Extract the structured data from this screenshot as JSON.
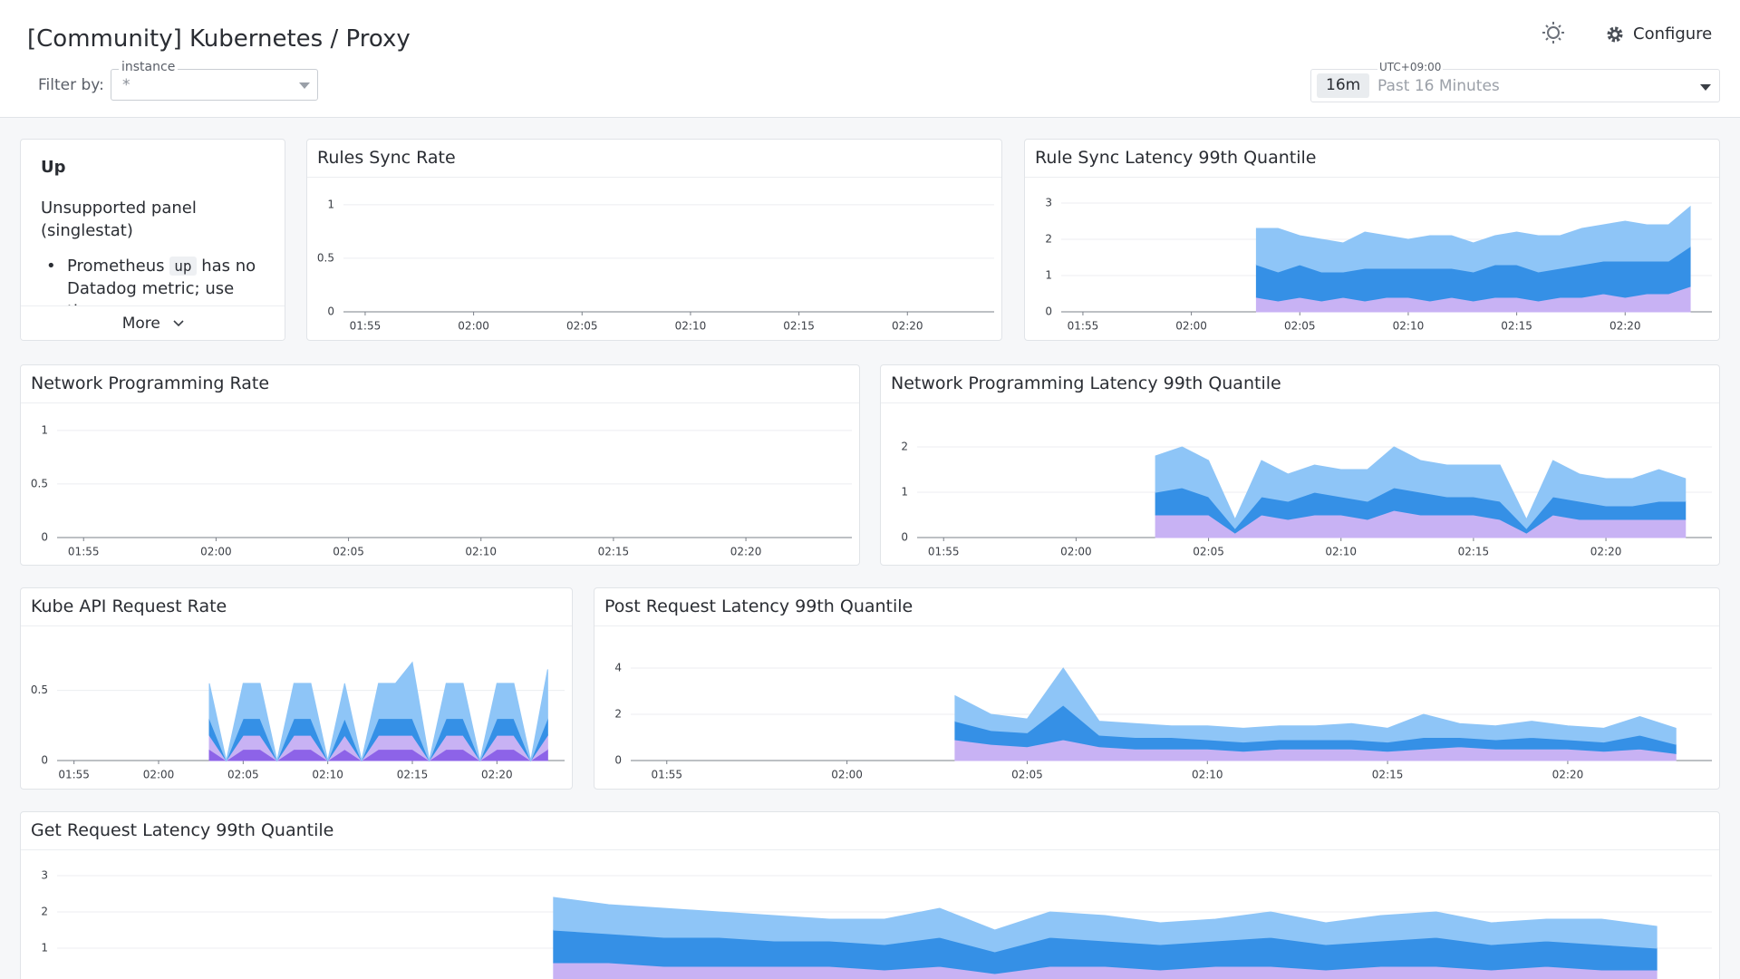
{
  "header": {
    "title": "[Community] Kubernetes / Proxy",
    "filter_label": "Filter by:",
    "filter_name": "instance",
    "filter_value": "*",
    "timezone": "UTC+09:00",
    "range_badge": "16m",
    "range_text": "Past 16 Minutes",
    "configure": "Configure"
  },
  "note_panel": {
    "title": "Up",
    "text": "Unsupported panel (singlestat)",
    "bullet_start": "Prometheus",
    "bullet_code": "up",
    "bullet_end": "has no Datadog metric; use the",
    "more": "More"
  },
  "chart_data": [
    {
      "type": "line",
      "title": "Rules Sync Rate",
      "xlim": [
        "01:54",
        "02:24"
      ],
      "xticks": [
        "01:55",
        "02:00",
        "02:05",
        "02:10",
        "02:15",
        "02:20"
      ],
      "ylim": [
        0,
        1.1
      ],
      "yticks": [
        0,
        0.5,
        1
      ],
      "grid": true,
      "series": []
    },
    {
      "type": "area",
      "title": "Rule Sync Latency 99th Quantile",
      "xlim": [
        "01:54",
        "02:24"
      ],
      "xticks": [
        "01:55",
        "02:00",
        "02:05",
        "02:10",
        "02:15",
        "02:20"
      ],
      "ylim": [
        0,
        3.25
      ],
      "yticks": [
        0,
        1,
        2,
        3
      ],
      "grid": true,
      "stacked": true,
      "x": [
        "02:03",
        "02:04",
        "02:05",
        "02:06",
        "02:07",
        "02:08",
        "02:09",
        "02:10",
        "02:11",
        "02:12",
        "02:13",
        "02:14",
        "02:15",
        "02:16",
        "02:17",
        "02:18",
        "02:19",
        "02:20",
        "02:21",
        "02:22",
        "02:23"
      ],
      "series": [
        {
          "color": "#c8b2f4",
          "values": [
            0.4,
            0.3,
            0.4,
            0.3,
            0.4,
            0.3,
            0.4,
            0.4,
            0.3,
            0.4,
            0.3,
            0.4,
            0.4,
            0.3,
            0.4,
            0.4,
            0.5,
            0.4,
            0.5,
            0.5,
            0.7
          ]
        },
        {
          "color": "#3590e6",
          "values": [
            0.9,
            0.8,
            0.9,
            0.8,
            0.7,
            0.9,
            0.8,
            0.8,
            0.9,
            0.8,
            0.8,
            0.9,
            0.9,
            0.8,
            0.8,
            0.9,
            0.9,
            1.0,
            0.9,
            0.9,
            1.1
          ]
        },
        {
          "color": "#8ec5f7",
          "values": [
            1.0,
            1.2,
            0.8,
            0.9,
            0.8,
            1.0,
            0.9,
            0.8,
            0.9,
            0.9,
            0.8,
            0.8,
            0.9,
            1.0,
            0.9,
            1.0,
            1.0,
            1.1,
            1.0,
            1.0,
            1.1
          ]
        }
      ]
    },
    {
      "type": "line",
      "title": "Network Programming Rate",
      "xlim": [
        "01:54",
        "02:24"
      ],
      "xticks": [
        "01:55",
        "02:00",
        "02:05",
        "02:10",
        "02:15",
        "02:20"
      ],
      "ylim": [
        0,
        1.1
      ],
      "yticks": [
        0,
        0.5,
        1
      ],
      "grid": true,
      "series": []
    },
    {
      "type": "area",
      "title": "Network Programming Latency 99th Quantile",
      "xlim": [
        "01:54",
        "02:24"
      ],
      "xticks": [
        "01:55",
        "02:00",
        "02:05",
        "02:10",
        "02:15",
        "02:20"
      ],
      "ylim": [
        0,
        2.6
      ],
      "yticks": [
        0,
        1,
        2
      ],
      "grid": true,
      "stacked": true,
      "x": [
        "02:03",
        "02:04",
        "02:05",
        "02:06",
        "02:07",
        "02:08",
        "02:09",
        "02:10",
        "02:11",
        "02:12",
        "02:13",
        "02:14",
        "02:15",
        "02:16",
        "02:17",
        "02:18",
        "02:19",
        "02:20",
        "02:21",
        "02:22",
        "02:23"
      ],
      "series": [
        {
          "color": "#c8b2f4",
          "values": [
            0.5,
            0.5,
            0.5,
            0.1,
            0.5,
            0.4,
            0.5,
            0.5,
            0.4,
            0.6,
            0.5,
            0.5,
            0.5,
            0.4,
            0.1,
            0.5,
            0.4,
            0.4,
            0.4,
            0.4,
            0.4
          ]
        },
        {
          "color": "#3590e6",
          "values": [
            0.5,
            0.6,
            0.4,
            0.1,
            0.4,
            0.4,
            0.5,
            0.4,
            0.4,
            0.5,
            0.5,
            0.4,
            0.4,
            0.4,
            0.1,
            0.4,
            0.4,
            0.3,
            0.3,
            0.4,
            0.4
          ]
        },
        {
          "color": "#8ec5f7",
          "values": [
            0.8,
            0.9,
            0.8,
            0.2,
            0.8,
            0.6,
            0.6,
            0.6,
            0.7,
            0.9,
            0.7,
            0.7,
            0.7,
            0.8,
            0.2,
            0.8,
            0.6,
            0.6,
            0.6,
            0.7,
            0.5
          ]
        }
      ]
    },
    {
      "type": "area",
      "title": "Kube API Request Rate",
      "xlim": [
        "01:54",
        "02:24"
      ],
      "xticks": [
        "01:55",
        "02:00",
        "02:05",
        "02:10",
        "02:15",
        "02:20"
      ],
      "ylim": [
        0,
        0.84
      ],
      "yticks": [
        0,
        0.5
      ],
      "grid": true,
      "stacked": true,
      "x": [
        "02:03",
        "02:04",
        "02:05",
        "02:06",
        "02:07",
        "02:08",
        "02:09",
        "02:10",
        "02:11",
        "02:12",
        "02:13",
        "02:14",
        "02:15",
        "02:16",
        "02:17",
        "02:18",
        "02:19",
        "02:20",
        "02:21",
        "02:22",
        "02:23"
      ],
      "series": [
        {
          "color": "#8d63e8",
          "values": [
            0.08,
            0,
            0.08,
            0.08,
            0,
            0.08,
            0.08,
            0,
            0.08,
            0,
            0.08,
            0.08,
            0.08,
            0,
            0.08,
            0.08,
            0,
            0.08,
            0.08,
            0,
            0.08
          ]
        },
        {
          "color": "#c8b2f4",
          "values": [
            0.1,
            0,
            0.1,
            0.1,
            0,
            0.1,
            0.1,
            0,
            0.1,
            0,
            0.1,
            0.1,
            0.1,
            0,
            0.1,
            0.1,
            0,
            0.1,
            0.1,
            0,
            0.1
          ]
        },
        {
          "color": "#3590e6",
          "values": [
            0.12,
            0,
            0.12,
            0.12,
            0,
            0.12,
            0.12,
            0,
            0.12,
            0,
            0.12,
            0.12,
            0.12,
            0,
            0.12,
            0.12,
            0,
            0.12,
            0.12,
            0,
            0.12
          ]
        },
        {
          "color": "#8ec5f7",
          "values": [
            0.25,
            0,
            0.25,
            0.25,
            0,
            0.25,
            0.25,
            0,
            0.25,
            0,
            0.25,
            0.25,
            0.4,
            0,
            0.25,
            0.25,
            0,
            0.25,
            0.25,
            0,
            0.35
          ]
        }
      ]
    },
    {
      "type": "area",
      "title": "Post Request Latency 99th Quantile",
      "xlim": [
        "01:54",
        "02:24"
      ],
      "xticks": [
        "01:55",
        "02:00",
        "02:05",
        "02:10",
        "02:15",
        "02:20"
      ],
      "ylim": [
        0,
        5.1
      ],
      "yticks": [
        0,
        2,
        4
      ],
      "grid": true,
      "stacked": true,
      "x": [
        "02:03",
        "02:04",
        "02:05",
        "02:06",
        "02:07",
        "02:08",
        "02:09",
        "02:10",
        "02:11",
        "02:12",
        "02:13",
        "02:14",
        "02:15",
        "02:16",
        "02:17",
        "02:18",
        "02:19",
        "02:20",
        "02:21",
        "02:22",
        "02:23"
      ],
      "series": [
        {
          "color": "#c8b2f4",
          "values": [
            0.9,
            0.7,
            0.6,
            0.9,
            0.6,
            0.5,
            0.5,
            0.5,
            0.4,
            0.5,
            0.5,
            0.5,
            0.4,
            0.5,
            0.6,
            0.5,
            0.5,
            0.5,
            0.4,
            0.5,
            0.3
          ]
        },
        {
          "color": "#3590e6",
          "values": [
            0.8,
            0.6,
            0.6,
            1.5,
            0.5,
            0.5,
            0.5,
            0.4,
            0.4,
            0.4,
            0.4,
            0.4,
            0.4,
            0.5,
            0.4,
            0.4,
            0.5,
            0.4,
            0.4,
            0.6,
            0.4
          ]
        },
        {
          "color": "#8ec5f7",
          "values": [
            1.1,
            0.7,
            0.6,
            1.6,
            0.6,
            0.6,
            0.5,
            0.6,
            0.6,
            0.6,
            0.6,
            0.7,
            0.6,
            1.0,
            0.6,
            0.6,
            0.7,
            0.6,
            0.6,
            0.8,
            0.7
          ]
        }
      ]
    },
    {
      "type": "area",
      "title": "Get Request Latency 99th Quantile",
      "xlim": [
        "01:54",
        "02:24"
      ],
      "ylim": [
        0,
        3.25
      ],
      "yticks": [
        1,
        2,
        3
      ],
      "grid": true,
      "stacked": true,
      "x": [
        "02:03",
        "02:04",
        "02:05",
        "02:06",
        "02:07",
        "02:08",
        "02:09",
        "02:10",
        "02:11",
        "02:12",
        "02:13",
        "02:14",
        "02:15",
        "02:16",
        "02:17",
        "02:18",
        "02:19",
        "02:20",
        "02:21",
        "02:22",
        "02:23"
      ],
      "series": [
        {
          "color": "#c8b2f4",
          "values": [
            0.6,
            0.6,
            0.5,
            0.5,
            0.5,
            0.5,
            0.4,
            0.5,
            0.3,
            0.5,
            0.5,
            0.4,
            0.5,
            0.5,
            0.4,
            0.5,
            0.5,
            0.4,
            0.5,
            0.4,
            0.4
          ]
        },
        {
          "color": "#3590e6",
          "values": [
            0.9,
            0.8,
            0.8,
            0.8,
            0.7,
            0.7,
            0.7,
            0.8,
            0.6,
            0.8,
            0.7,
            0.7,
            0.7,
            0.8,
            0.7,
            0.7,
            0.8,
            0.7,
            0.7,
            0.7,
            0.6
          ]
        },
        {
          "color": "#8ec5f7",
          "values": [
            0.9,
            0.8,
            0.8,
            0.7,
            0.7,
            0.6,
            0.7,
            0.8,
            0.6,
            0.7,
            0.7,
            0.6,
            0.6,
            0.7,
            0.6,
            0.7,
            0.7,
            0.6,
            0.6,
            0.7,
            0.6
          ]
        }
      ]
    }
  ]
}
